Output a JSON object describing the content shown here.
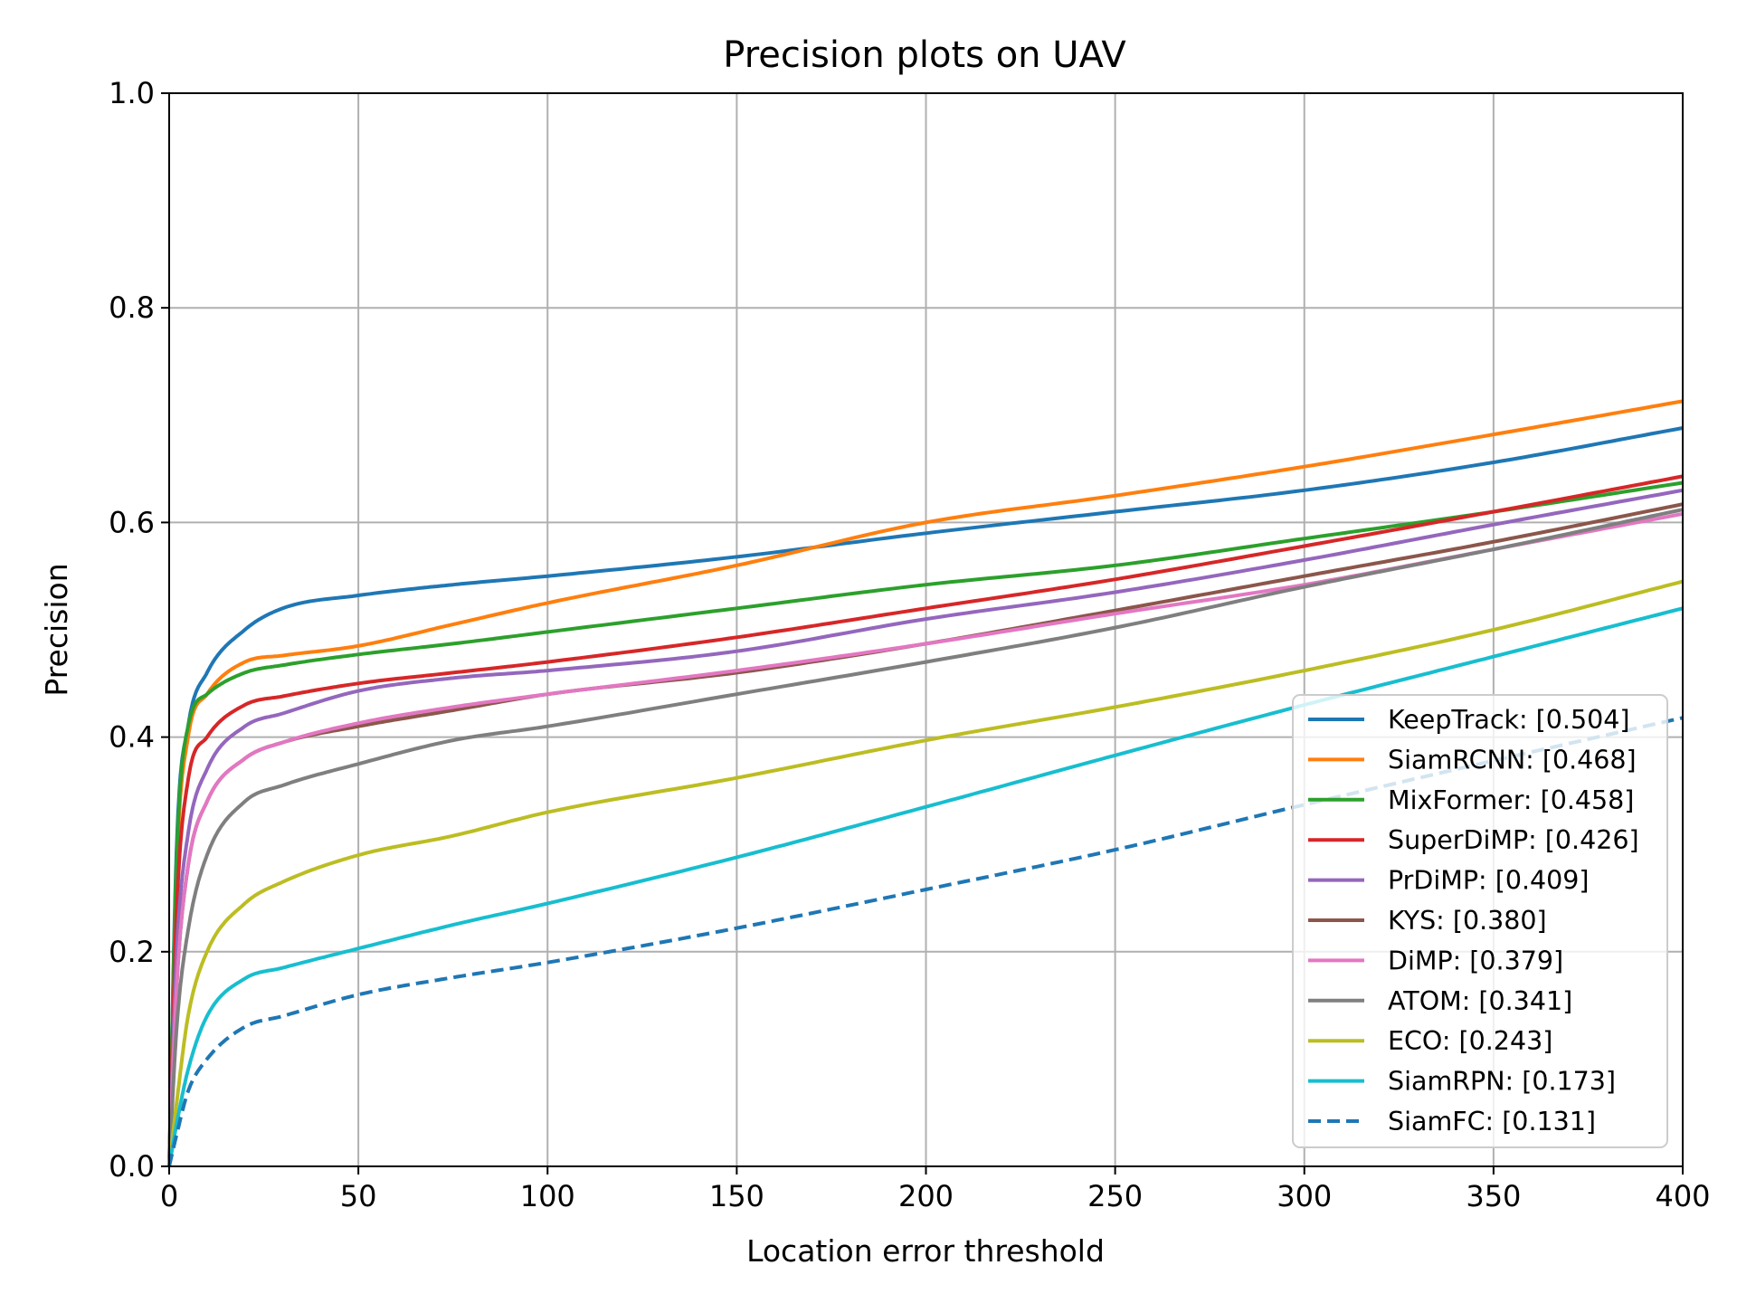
{
  "chart_data": {
    "type": "line",
    "title": "Precision plots on UAV",
    "xlabel": "Location error threshold",
    "ylabel": "Precision",
    "xlim": [
      0,
      400
    ],
    "ylim": [
      0,
      1.0
    ],
    "x_ticks": [
      "0",
      "50",
      "100",
      "150",
      "200",
      "250",
      "300",
      "350",
      "400"
    ],
    "y_ticks": [
      "0.0",
      "0.2",
      "0.4",
      "0.6",
      "0.8",
      "1.0"
    ],
    "grid": true,
    "legend_position": "lower right",
    "x": [
      0,
      2,
      5,
      10,
      20,
      30,
      50,
      75,
      100,
      150,
      200,
      250,
      300,
      350,
      400
    ],
    "series": [
      {
        "name": "KeepTrack: [0.504]",
        "color": "#1f77b4",
        "dash": "solid",
        "values": [
          0.0,
          0.3,
          0.41,
          0.46,
          0.5,
          0.52,
          0.532,
          0.542,
          0.55,
          0.568,
          0.59,
          0.61,
          0.63,
          0.656,
          0.688
        ]
      },
      {
        "name": "SiamRCNN: [0.468]",
        "color": "#ff7f0e",
        "dash": "solid",
        "values": [
          0.0,
          0.28,
          0.4,
          0.44,
          0.47,
          0.476,
          0.485,
          0.505,
          0.525,
          0.56,
          0.6,
          0.625,
          0.652,
          0.682,
          0.713
        ]
      },
      {
        "name": "MixFormer: [0.458]",
        "color": "#2ca02c",
        "dash": "solid",
        "values": [
          0.0,
          0.29,
          0.41,
          0.44,
          0.46,
          0.467,
          0.477,
          0.487,
          0.498,
          0.52,
          0.542,
          0.56,
          0.585,
          0.61,
          0.637
        ]
      },
      {
        "name": "SuperDiMP: [0.426]",
        "color": "#d62728",
        "dash": "solid",
        "values": [
          0.0,
          0.24,
          0.36,
          0.4,
          0.43,
          0.438,
          0.45,
          0.46,
          0.47,
          0.493,
          0.52,
          0.547,
          0.578,
          0.61,
          0.643
        ]
      },
      {
        "name": "PrDiMP: [0.409]",
        "color": "#9467bd",
        "dash": "solid",
        "values": [
          0.0,
          0.2,
          0.31,
          0.37,
          0.41,
          0.422,
          0.443,
          0.455,
          0.462,
          0.48,
          0.51,
          0.535,
          0.565,
          0.598,
          0.63
        ]
      },
      {
        "name": "KYS: [0.380]",
        "color": "#8c564b",
        "dash": "solid",
        "values": [
          0.0,
          0.17,
          0.28,
          0.34,
          0.38,
          0.395,
          0.41,
          0.425,
          0.44,
          0.46,
          0.487,
          0.518,
          0.55,
          0.582,
          0.617
        ]
      },
      {
        "name": "DiMP: [0.379]",
        "color": "#e377c2",
        "dash": "solid",
        "values": [
          0.0,
          0.17,
          0.28,
          0.34,
          0.38,
          0.395,
          0.413,
          0.428,
          0.44,
          0.462,
          0.487,
          0.515,
          0.542,
          0.575,
          0.608
        ]
      },
      {
        "name": "ATOM: [0.341]",
        "color": "#7f7f7f",
        "dash": "solid",
        "values": [
          0.0,
          0.13,
          0.22,
          0.29,
          0.34,
          0.355,
          0.375,
          0.397,
          0.41,
          0.44,
          0.47,
          0.502,
          0.54,
          0.575,
          0.612
        ]
      },
      {
        "name": "ECO: [0.243]",
        "color": "#bcbd22",
        "dash": "solid",
        "values": [
          0.0,
          0.06,
          0.14,
          0.2,
          0.245,
          0.265,
          0.29,
          0.308,
          0.33,
          0.362,
          0.397,
          0.428,
          0.462,
          0.5,
          0.545
        ]
      },
      {
        "name": "SiamRPN: [0.173]",
        "color": "#17becf",
        "dash": "solid",
        "values": [
          0.0,
          0.04,
          0.09,
          0.14,
          0.175,
          0.185,
          0.203,
          0.225,
          0.245,
          0.288,
          0.335,
          0.383,
          0.43,
          0.475,
          0.52
        ]
      },
      {
        "name": "SiamFC: [0.131]",
        "color": "#1f77b4",
        "dash": "dashed",
        "values": [
          0.0,
          0.03,
          0.07,
          0.1,
          0.13,
          0.14,
          0.16,
          0.176,
          0.19,
          0.222,
          0.258,
          0.295,
          0.337,
          0.378,
          0.418
        ]
      }
    ]
  }
}
